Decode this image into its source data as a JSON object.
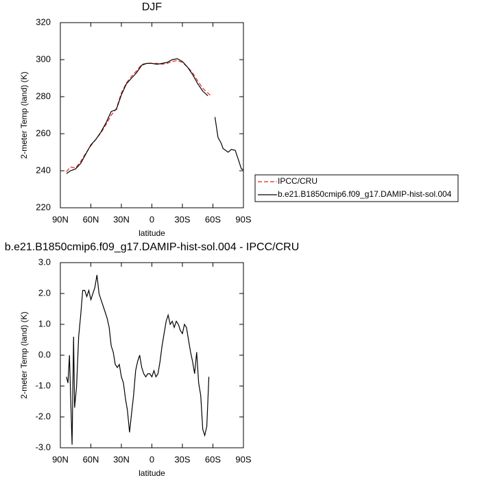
{
  "chart_data": [
    {
      "type": "line",
      "title": "DJF",
      "xlabel": "latitude",
      "ylabel": "2-meter Temp (land) (K)",
      "x": [
        84,
        80,
        75,
        70,
        65,
        60,
        55,
        50,
        45,
        40,
        35,
        30,
        25,
        20,
        15,
        10,
        5,
        0,
        -5,
        -10,
        -15,
        -20,
        -25,
        -30,
        -35,
        -40,
        -45,
        -50,
        -55,
        -58,
        -62,
        -65,
        -68,
        -70,
        -75,
        -78,
        -82,
        -85,
        -88,
        -90
      ],
      "series": [
        {
          "name": "IPCC/CRU",
          "color": "#e8211e",
          "line_style": "dashed",
          "values": [
            239.5,
            242,
            241.5,
            245,
            249.5,
            253.5,
            257,
            260.5,
            265,
            270,
            273.5,
            282,
            287.5,
            291,
            294,
            297.5,
            298,
            298,
            298,
            297.5,
            298,
            299,
            299.5,
            298.5,
            296,
            293,
            288.5,
            284.5,
            282,
            280.5,
            null,
            null,
            null,
            null,
            null,
            null,
            null,
            null,
            null,
            null
          ]
        },
        {
          "name": "b.e21.B1850cmip6.f09_g17.DAMIP-hist-sol.004",
          "color": "#000000",
          "line_style": "solid",
          "values": [
            238.5,
            240,
            241,
            244,
            249,
            254,
            257,
            261,
            266,
            272,
            273,
            281,
            287,
            290,
            293,
            297,
            298,
            298,
            297.5,
            298,
            298.5,
            300,
            300.5,
            299,
            296,
            292,
            287,
            283,
            280.5,
            null,
            269,
            258,
            255,
            252,
            250,
            251.5,
            251,
            246,
            241,
            240.5
          ]
        }
      ],
      "xlim": [
        90,
        -90
      ],
      "xticks": [
        {
          "value": 90,
          "label": "90N"
        },
        {
          "value": 60,
          "label": "60N"
        },
        {
          "value": 30,
          "label": "30N"
        },
        0,
        {
          "value": -30,
          "label": "30S"
        },
        {
          "value": -60,
          "label": "60S"
        },
        {
          "value": -90,
          "label": "90S"
        }
      ],
      "ylim": [
        220,
        320
      ],
      "yticks": [
        220,
        240,
        260,
        280,
        300,
        320
      ],
      "legend": "right"
    },
    {
      "type": "line",
      "title": "b.e21.B1850cmip6.f09_g17.DAMIP-hist-sol.004 - IPCC/CRU",
      "xlabel": "latitude",
      "ylabel": "2-meter Temp (land) (K)",
      "x": [
        84,
        82.5,
        81,
        80,
        78.5,
        77,
        76,
        74,
        72,
        70,
        68,
        66,
        64,
        62,
        60,
        58,
        56,
        54,
        52,
        50,
        48,
        46,
        44,
        42,
        40,
        38,
        36,
        34,
        32,
        30,
        28,
        26,
        24,
        22,
        20,
        18,
        16,
        14,
        12,
        10,
        8,
        6,
        4,
        2,
        0,
        -2,
        -4,
        -6,
        -8,
        -10,
        -12,
        -14,
        -16,
        -18,
        -20,
        -22,
        -24,
        -26,
        -28,
        -30,
        -32,
        -34,
        -36,
        -38,
        -40,
        -42,
        -44,
        -46,
        -48,
        -50,
        -52,
        -54,
        -55,
        -56
      ],
      "values": [
        -0.7,
        -0.9,
        0.0,
        -1.2,
        -2.9,
        0.6,
        -1.7,
        -1.0,
        0.6,
        1.3,
        2.1,
        2.1,
        1.9,
        2.1,
        1.8,
        2.0,
        2.2,
        2.6,
        2.0,
        1.8,
        1.6,
        1.4,
        1.2,
        0.9,
        0.3,
        0.1,
        -0.3,
        -0.4,
        -0.3,
        -0.7,
        -0.9,
        -1.4,
        -1.8,
        -2.5,
        -1.9,
        -1.3,
        -0.5,
        -0.2,
        0.0,
        -0.4,
        -0.6,
        -0.7,
        -0.6,
        -0.6,
        -0.7,
        -0.5,
        -0.7,
        -0.6,
        -0.2,
        0.3,
        0.7,
        1.1,
        1.3,
        1.0,
        1.1,
        0.9,
        1.1,
        1.0,
        0.8,
        0.7,
        1.0,
        0.9,
        0.5,
        0.1,
        -0.2,
        -0.6,
        0.1,
        -0.9,
        -1.3,
        -2.4,
        -2.6,
        -2.3,
        -1.5,
        -0.7
      ],
      "color": "#000000",
      "xlim": [
        90,
        -90
      ],
      "xticks": [
        {
          "value": 90,
          "label": "90N"
        },
        {
          "value": 60,
          "label": "60N"
        },
        {
          "value": 30,
          "label": "30N"
        },
        0,
        {
          "value": -30,
          "label": "30S"
        },
        {
          "value": -60,
          "label": "60S"
        },
        {
          "value": -90,
          "label": "90S"
        }
      ],
      "ylim": [
        -3,
        3
      ],
      "yticks": [
        {
          "value": -3,
          "label": "-3.0"
        },
        {
          "value": -2,
          "label": "-2.0"
        },
        {
          "value": -1,
          "label": "-1.0"
        },
        {
          "value": 0,
          "label": "0.0"
        },
        {
          "value": 1,
          "label": "1.0"
        },
        {
          "value": 2,
          "label": "2.0"
        },
        {
          "value": 3,
          "label": "3.0"
        }
      ]
    }
  ]
}
